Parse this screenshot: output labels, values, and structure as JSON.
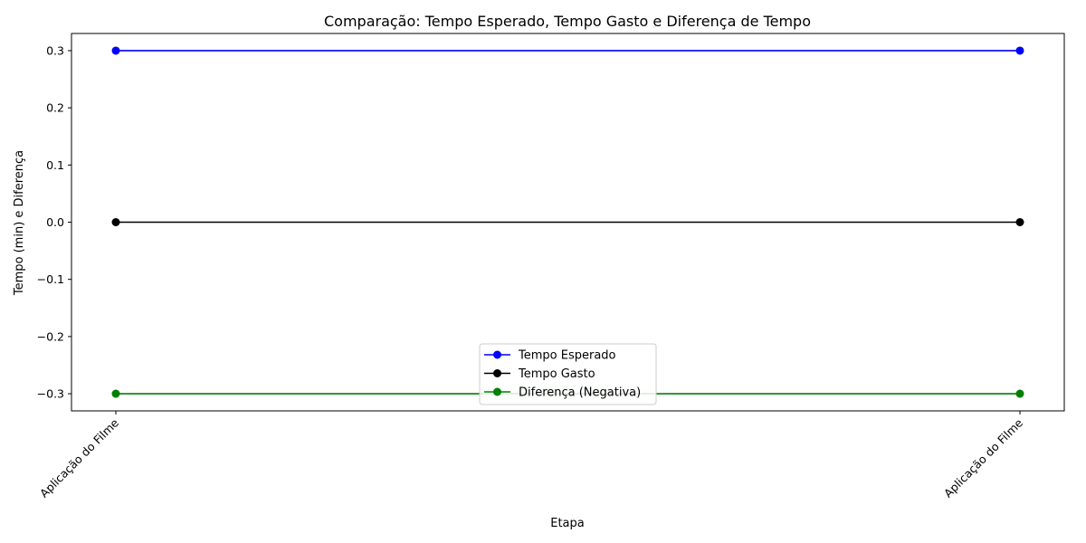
{
  "chart_data": {
    "type": "line",
    "title": "Comparação: Tempo Esperado, Tempo Gasto e Diferença de Tempo",
    "xlabel": "Etapa",
    "ylabel": "Tempo (min) e Diferença",
    "categories": [
      "Aplicação do Filme",
      "Aplicação do Filme"
    ],
    "ylim": [
      -0.33,
      0.33
    ],
    "yticks": [
      -0.3,
      -0.2,
      -0.1,
      0.0,
      0.1,
      0.2,
      0.3
    ],
    "ytick_labels": [
      "−0.3",
      "−0.2",
      "−0.1",
      "0.0",
      "0.1",
      "0.2",
      "0.3"
    ],
    "grid": false,
    "legend_position": "lower center",
    "series": [
      {
        "name": "Tempo Esperado",
        "color": "#0000ff",
        "marker": "circle",
        "values": [
          0.3,
          0.3
        ]
      },
      {
        "name": "Tempo Gasto",
        "color": "#000000",
        "marker": "circle",
        "values": [
          0.0,
          0.0
        ]
      },
      {
        "name": "Diferença (Negativa)",
        "color": "#008000",
        "marker": "circle",
        "values": [
          -0.3,
          -0.3
        ]
      }
    ]
  }
}
